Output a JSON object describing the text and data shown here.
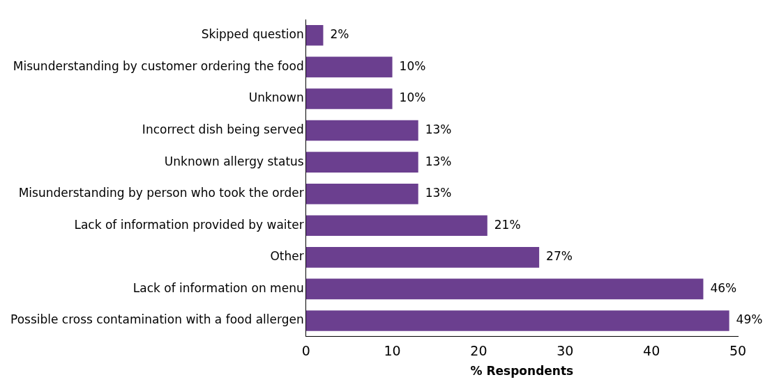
{
  "chart_data": {
    "type": "bar",
    "orientation": "horizontal",
    "xlabel": "% Respondents",
    "categories": [
      "Skipped question",
      "Misunderstanding by customer ordering the food",
      "Unknown",
      "Incorrect dish being served",
      "Unknown allergy status",
      "Misunderstanding by person who took the order",
      "Lack of information provided by waiter",
      "Other",
      "Lack of information on menu",
      "Possible cross contamination with a food allergen"
    ],
    "values": [
      2,
      10,
      10,
      13,
      13,
      13,
      21,
      27,
      46,
      49
    ],
    "value_labels": [
      "2%",
      "10%",
      "10%",
      "13%",
      "13%",
      "13%",
      "21%",
      "27%",
      "46%",
      "49%"
    ],
    "color": "#6b3f8f",
    "xlim": [
      0,
      50
    ],
    "xticks": [
      0,
      10,
      20,
      30,
      40,
      50
    ],
    "grid": false,
    "legend": false
  }
}
